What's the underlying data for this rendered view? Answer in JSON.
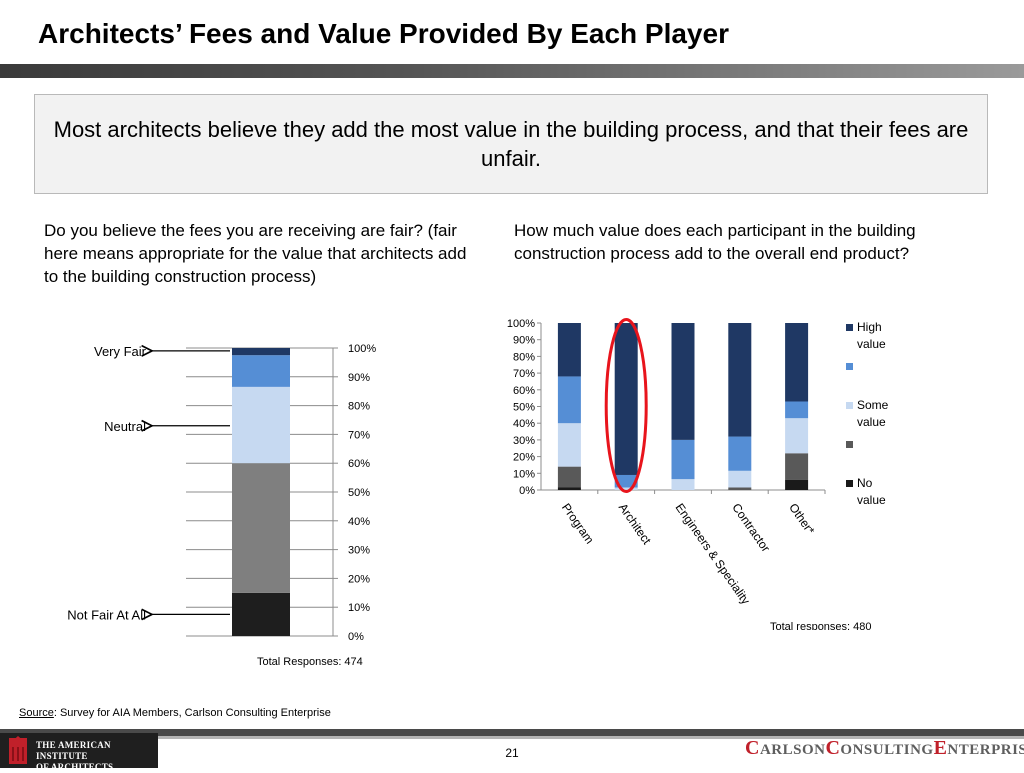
{
  "header": {
    "title": "Architects’ Fees and Value Provided By Each Player"
  },
  "callout": {
    "text": "Most architects believe they add the most value in the building process, and that their fees are unfair."
  },
  "left": {
    "question": "Do you believe the fees you are receiving are fair?  (fair here means appropriate for the value that architects add to the building construction process)",
    "total": "Total Responses: 474"
  },
  "right": {
    "question": "How much value does each participant in the building construction process add to the overall end product?",
    "total": "Total responses: 480"
  },
  "footer": {
    "source_label": "Source",
    "source_text": ": Survey for AIA Members, Carlson Consulting Enterprise",
    "aia_line1": "THE AMERICAN INSTITUTE",
    "aia_line2": "OF ARCHITECTS",
    "page_number": "21",
    "carlson_c": "C",
    "carlson_arlson": "ARLSON",
    "carlson_c2": "C",
    "carlson_onsulting": "ONSULTING",
    "carlson_e": "E",
    "carlson_nterprise": "NTERPRISE"
  },
  "colors": {
    "navy": "#1f3864",
    "mid_blue": "#558ed5",
    "light_blue": "#c6d9f1",
    "gray": "#7f7f7f",
    "dark_gray": "#595959",
    "near_black": "#1e1e1e",
    "black": "#1a1a1a",
    "highlight": "#e8141c"
  },
  "chart_data": [
    {
      "type": "bar",
      "stacked": true,
      "categories": [
        ""
      ],
      "ylim": [
        0,
        100
      ],
      "yticks": [
        "0%",
        "10%",
        "20%",
        "30%",
        "40%",
        "50%",
        "60%",
        "70%",
        "80%",
        "90%",
        "100%"
      ],
      "series": [
        {
          "values": [
            15
          ],
          "color": "#1e1e1e"
        },
        {
          "values": [
            45
          ],
          "color": "#7f7f7f"
        },
        {
          "values": [
            26.5
          ],
          "color": "#c6d9f1"
        },
        {
          "values": [
            11
          ],
          "color": "#558ed5"
        },
        {
          "values": [
            2.5
          ],
          "color": "#1f3864"
        }
      ],
      "annotations": [
        {
          "text": "Very Fair",
          "value": 99
        },
        {
          "text": "Neutral",
          "value": 73
        },
        {
          "text": "Not Fair At All",
          "value": 7.5
        }
      ]
    },
    {
      "type": "bar",
      "stacked": true,
      "categories": [
        "Program",
        "Architect",
        "Engineers & Speciality",
        "Contractor",
        "Other*"
      ],
      "ylim": [
        0,
        100
      ],
      "yticks": [
        "0%",
        "10%",
        "20%",
        "30%",
        "40%",
        "50%",
        "60%",
        "70%",
        "80%",
        "90%",
        "100%"
      ],
      "legend_position": "right",
      "series": [
        {
          "name": "No value",
          "values": [
            1.5,
            0,
            0,
            0,
            6
          ],
          "color": "#1a1a1a"
        },
        {
          "name": "",
          "values": [
            12.5,
            0,
            0,
            1.5,
            16
          ],
          "color": "#595959"
        },
        {
          "name": "Some value",
          "values": [
            26,
            1.5,
            6.5,
            10,
            21
          ],
          "color": "#c6d9f1"
        },
        {
          "name": "",
          "values": [
            28,
            7.5,
            23.5,
            20.5,
            10
          ],
          "color": "#558ed5"
        },
        {
          "name": "High value",
          "values": [
            32,
            91,
            70,
            68,
            47
          ],
          "color": "#1f3864"
        }
      ],
      "legend_order": [
        4,
        3,
        2,
        1,
        0
      ],
      "highlight_category": "Architect"
    }
  ]
}
